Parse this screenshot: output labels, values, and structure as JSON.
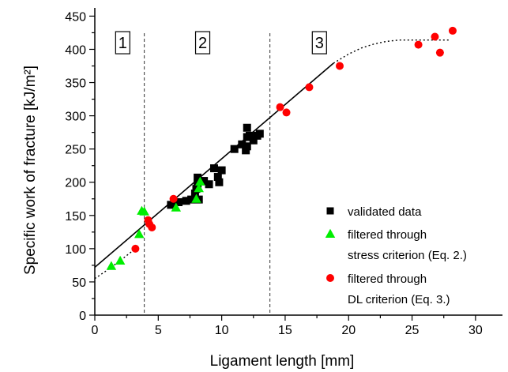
{
  "chart_data": {
    "type": "scatter",
    "xlabel": "Ligament length [mm]",
    "ylabel": "Specific work of fracture [kJ/m²]",
    "xlim": [
      0,
      32
    ],
    "ylim": [
      0,
      460
    ],
    "xticks": [
      0,
      5,
      10,
      15,
      20,
      25,
      30
    ],
    "yticks": [
      0,
      50,
      100,
      150,
      200,
      250,
      300,
      350,
      400,
      450
    ],
    "grid": false,
    "legend_position": "right",
    "region_boundaries": [
      3.9,
      13.8
    ],
    "regions": [
      {
        "label": "1",
        "x": 2.2,
        "y": 410
      },
      {
        "label": "2",
        "x": 8.5,
        "y": 410
      },
      {
        "label": "3",
        "x": 17.7,
        "y": 410
      }
    ],
    "series": [
      {
        "name": "validated data",
        "marker": "square",
        "color": "#000000",
        "points": [
          [
            6.0,
            166
          ],
          [
            6.6,
            170
          ],
          [
            7.2,
            172
          ],
          [
            7.6,
            174
          ],
          [
            7.9,
            183
          ],
          [
            8.0,
            190
          ],
          [
            8.1,
            198
          ],
          [
            8.1,
            207
          ],
          [
            8.2,
            174
          ],
          [
            8.6,
            202
          ],
          [
            9.0,
            197
          ],
          [
            9.4,
            221
          ],
          [
            9.7,
            208
          ],
          [
            9.8,
            200
          ],
          [
            10.0,
            218
          ],
          [
            11.0,
            250
          ],
          [
            11.6,
            257
          ],
          [
            11.9,
            248
          ],
          [
            12.0,
            254
          ],
          [
            12.0,
            268
          ],
          [
            12.0,
            282
          ],
          [
            12.2,
            270
          ],
          [
            12.5,
            263
          ],
          [
            12.8,
            270
          ],
          [
            13.0,
            273
          ]
        ]
      },
      {
        "name": "filtered through stress criterion (Eq. 2.)",
        "legend_lines": [
          "filtered through",
          "stress criterion (Eq. 2.)"
        ],
        "marker": "triangle",
        "color": "#00ee00",
        "points": [
          [
            1.3,
            74
          ],
          [
            2.0,
            82
          ],
          [
            3.5,
            122
          ],
          [
            3.7,
            157
          ],
          [
            3.9,
            156
          ],
          [
            6.4,
            162
          ],
          [
            8.0,
            175
          ],
          [
            8.2,
            191
          ],
          [
            8.3,
            201
          ]
        ]
      },
      {
        "name": "filtered through DL criterion (Eq. 3.)",
        "legend_lines": [
          "filtered through",
          "DL criterion (Eq. 3.)"
        ],
        "marker": "circle",
        "color": "#ff0000",
        "points": [
          [
            3.2,
            100
          ],
          [
            4.2,
            143
          ],
          [
            4.3,
            137
          ],
          [
            4.5,
            132
          ],
          [
            6.2,
            175
          ],
          [
            14.6,
            313
          ],
          [
            15.1,
            305
          ],
          [
            16.9,
            343
          ],
          [
            19.3,
            375
          ],
          [
            25.5,
            407
          ],
          [
            26.8,
            419
          ],
          [
            27.2,
            395
          ],
          [
            28.2,
            428
          ]
        ]
      }
    ],
    "fit_line": {
      "style": "solid",
      "x": [
        0,
        18.8
      ],
      "y": [
        72,
        379
      ]
    },
    "fit_curve": {
      "style": "dotted",
      "points": [
        [
          0,
          55
        ],
        [
          1,
          68
        ],
        [
          2,
          82
        ],
        [
          3,
          97
        ],
        [
          18.8,
          379
        ],
        [
          20,
          393
        ],
        [
          21,
          402
        ],
        [
          22,
          408
        ],
        [
          23,
          412
        ],
        [
          24,
          414
        ],
        [
          25,
          414
        ],
        [
          26,
          414
        ],
        [
          27,
          414
        ],
        [
          28,
          414
        ]
      ]
    }
  }
}
